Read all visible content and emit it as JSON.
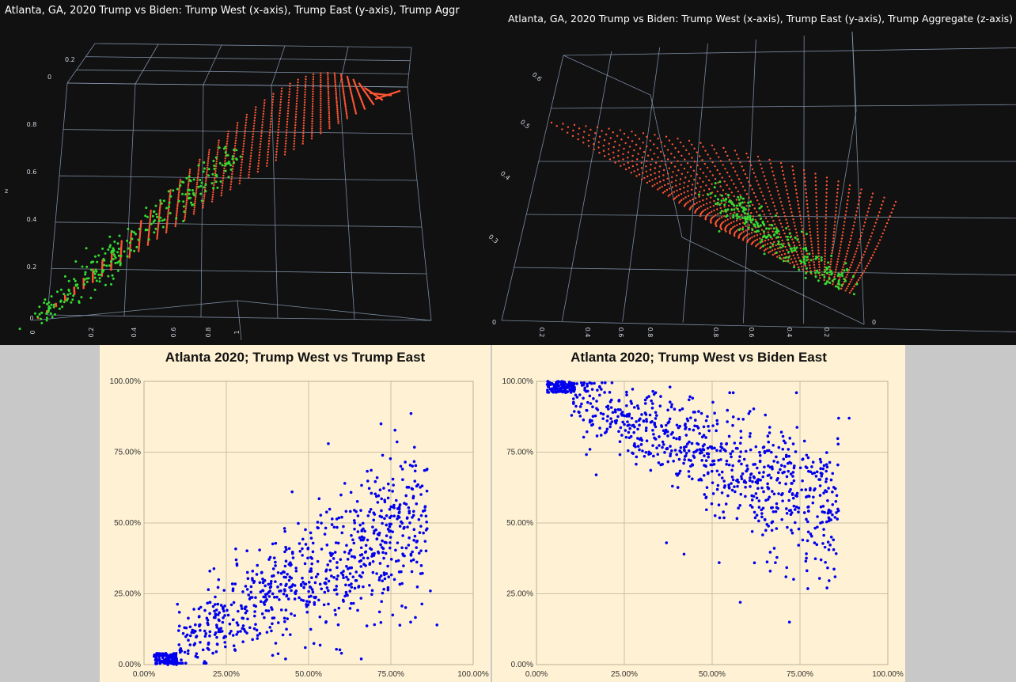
{
  "colors": {
    "surface": "#ff5533",
    "observed": "#33dd33",
    "scatter": "#0000ee",
    "grid3d": "#8da0b8",
    "panel3d_bg": "#111111",
    "panel2d_bg": "#fff2d4"
  },
  "chart_data": [
    {
      "type": "scatter",
      "title": "Atlanta, GA, 2020 Trump vs Biden: Trump West (x-axis), Trump East (y-axis), Trump Aggr",
      "projection": "3d",
      "z_axis_label": "z",
      "x_ticks": [
        "0",
        "0.2",
        "0.4",
        "0.6",
        "0.8",
        "1"
      ],
      "z_ticks": [
        "0",
        "0.2",
        "0.4",
        "0.6",
        "0.8"
      ],
      "back_ticks": [
        "0.2",
        "0"
      ],
      "series": [
        {
          "type": "surface",
          "description": "fitted surface"
        },
        {
          "type": "points",
          "description": "observed precincts"
        }
      ]
    },
    {
      "type": "scatter",
      "title": "Atlanta, GA, 2020 Trump vs Biden: Trump West (x-axis), Trump East (y-axis), Trump Aggregate (z-axis)",
      "projection": "3d",
      "x_ticks": [
        "0.2",
        "0.4",
        "0.6",
        "0.8",
        "0.8",
        "0.6",
        "0.4",
        "0.2"
      ],
      "z_ticks": [
        "0.6",
        "0.5",
        "0.4",
        "0.3"
      ],
      "end_ticks": [
        "0",
        "0"
      ]
    },
    {
      "type": "scatter",
      "title": "Atlanta 2020; Trump West vs Trump East",
      "x_ticks": [
        "0.00%",
        "25.00%",
        "50.00%",
        "75.00%",
        "100.00%"
      ],
      "y_ticks": [
        "0.00%",
        "25.00%",
        "50.00%",
        "75.00%",
        "100.00%"
      ],
      "xlim": [
        0,
        1
      ],
      "ylim": [
        0,
        1
      ],
      "grid": true,
      "trend": {
        "intercept": 0.0,
        "slope": 0.62,
        "spread": 0.11
      },
      "cluster": {
        "x_range": [
          0.03,
          0.1
        ],
        "y_range": [
          0.0,
          0.04
        ]
      },
      "points": [
        [
          0.56,
          0.78
        ],
        [
          0.72,
          0.85
        ],
        [
          0.86,
          0.69
        ],
        [
          0.78,
          0.7
        ],
        [
          0.89,
          0.14
        ],
        [
          0.87,
          0.26
        ],
        [
          0.45,
          0.61
        ],
        [
          0.64,
          0.5
        ],
        [
          0.61,
          0.64
        ],
        [
          0.86,
          0.48
        ],
        [
          0.81,
          0.15
        ],
        [
          0.33,
          0.33
        ],
        [
          0.43,
          0.02
        ],
        [
          0.66,
          0.02
        ],
        [
          0.49,
          0.06
        ],
        [
          0.6,
          0.04
        ],
        [
          0.28,
          0.37
        ],
        [
          0.2,
          0.33
        ]
      ]
    },
    {
      "type": "scatter",
      "title": "Atlanta 2020; Trump West vs Biden East",
      "x_ticks": [
        "0.00%",
        "25.00%",
        "50.00%",
        "75.00%",
        "100.00%"
      ],
      "y_ticks": [
        "0.00%",
        "25.00%",
        "50.00%",
        "75.00%",
        "100.00%"
      ],
      "xlim": [
        0,
        1
      ],
      "ylim": [
        0,
        1
      ],
      "grid": true,
      "trend": {
        "intercept": 1.0,
        "slope": -0.55,
        "spread": 0.1
      },
      "cluster": {
        "x_range": [
          0.03,
          0.11
        ],
        "y_range": [
          0.96,
          1.0
        ]
      },
      "points": [
        [
          0.38,
          0.98
        ],
        [
          0.55,
          0.96
        ],
        [
          0.56,
          0.96
        ],
        [
          0.74,
          0.96
        ],
        [
          0.86,
          0.87
        ],
        [
          0.89,
          0.87
        ],
        [
          0.1,
          0.88
        ],
        [
          0.17,
          0.67
        ],
        [
          0.58,
          0.22
        ],
        [
          0.72,
          0.15
        ],
        [
          0.71,
          0.31
        ],
        [
          0.85,
          0.31
        ],
        [
          0.68,
          0.36
        ],
        [
          0.52,
          0.36
        ],
        [
          0.37,
          0.43
        ],
        [
          0.42,
          0.39
        ],
        [
          0.81,
          0.37
        ]
      ]
    }
  ]
}
